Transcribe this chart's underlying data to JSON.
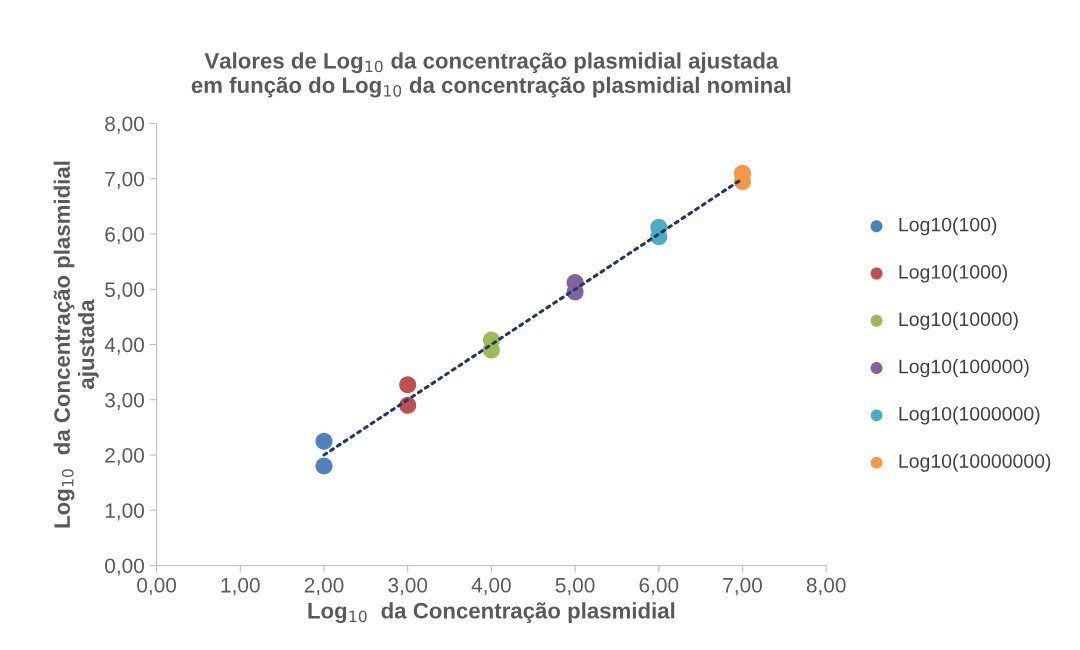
{
  "chart_data": {
    "type": "scatter",
    "title": "Valores de Log$_{10}$ da concentração plasmidial ajustada\nem função do Log$_{10}$ da concentração plasmidial nominal",
    "xlabel": "Log$_{10}$  da Concentração plasmidial",
    "ylabel": "Log$_{10}$  da Concentração plasmidial\najustada",
    "xlim": [
      0,
      8
    ],
    "ylim": [
      0,
      8
    ],
    "xticks": [
      {
        "value": 0,
        "label": "0,00"
      },
      {
        "value": 1,
        "label": "1,00"
      },
      {
        "value": 2,
        "label": "2,00"
      },
      {
        "value": 3,
        "label": "3,00"
      },
      {
        "value": 4,
        "label": "4,00"
      },
      {
        "value": 5,
        "label": "5,00"
      },
      {
        "value": 6,
        "label": "6,00"
      },
      {
        "value": 7,
        "label": "7,00"
      },
      {
        "value": 8,
        "label": "8,00"
      }
    ],
    "yticks": [
      {
        "value": 0,
        "label": "0,00"
      },
      {
        "value": 1,
        "label": "1,00"
      },
      {
        "value": 2,
        "label": "2,00"
      },
      {
        "value": 3,
        "label": "3,00"
      },
      {
        "value": 4,
        "label": "4,00"
      },
      {
        "value": 5,
        "label": "5,00"
      },
      {
        "value": 6,
        "label": "6,00"
      },
      {
        "value": 7,
        "label": "7,00"
      },
      {
        "value": 8,
        "label": "8,00"
      }
    ],
    "grid": false,
    "legend": "right",
    "marker": "circle",
    "series": [
      {
        "name": "Log10(100)",
        "color": "#4f81bd",
        "x": [
          2,
          2
        ],
        "values": [
          1.8,
          2.25
        ]
      },
      {
        "name": "Log10(1000)",
        "color": "#c0504d",
        "x": [
          3,
          3
        ],
        "values": [
          2.9,
          3.27
        ]
      },
      {
        "name": "Log10(10000)",
        "color": "#9bbb59",
        "x": [
          4,
          4
        ],
        "values": [
          3.9,
          4.08
        ]
      },
      {
        "name": "Log10(100000)",
        "color": "#8064a2",
        "x": [
          5,
          5
        ],
        "values": [
          4.95,
          5.12
        ]
      },
      {
        "name": "Log10(1000000)",
        "color": "#4bacc6",
        "x": [
          6,
          6
        ],
        "values": [
          5.95,
          6.12
        ]
      },
      {
        "name": "Log10(10000000)",
        "color": "#f79646",
        "x": [
          7,
          7
        ],
        "values": [
          6.95,
          7.1
        ]
      },
      {
        "type": "line",
        "color": "#1f3864",
        "line_style": "dotted",
        "marker": "none",
        "x": [
          2,
          7
        ],
        "values": [
          2,
          7
        ]
      }
    ]
  }
}
